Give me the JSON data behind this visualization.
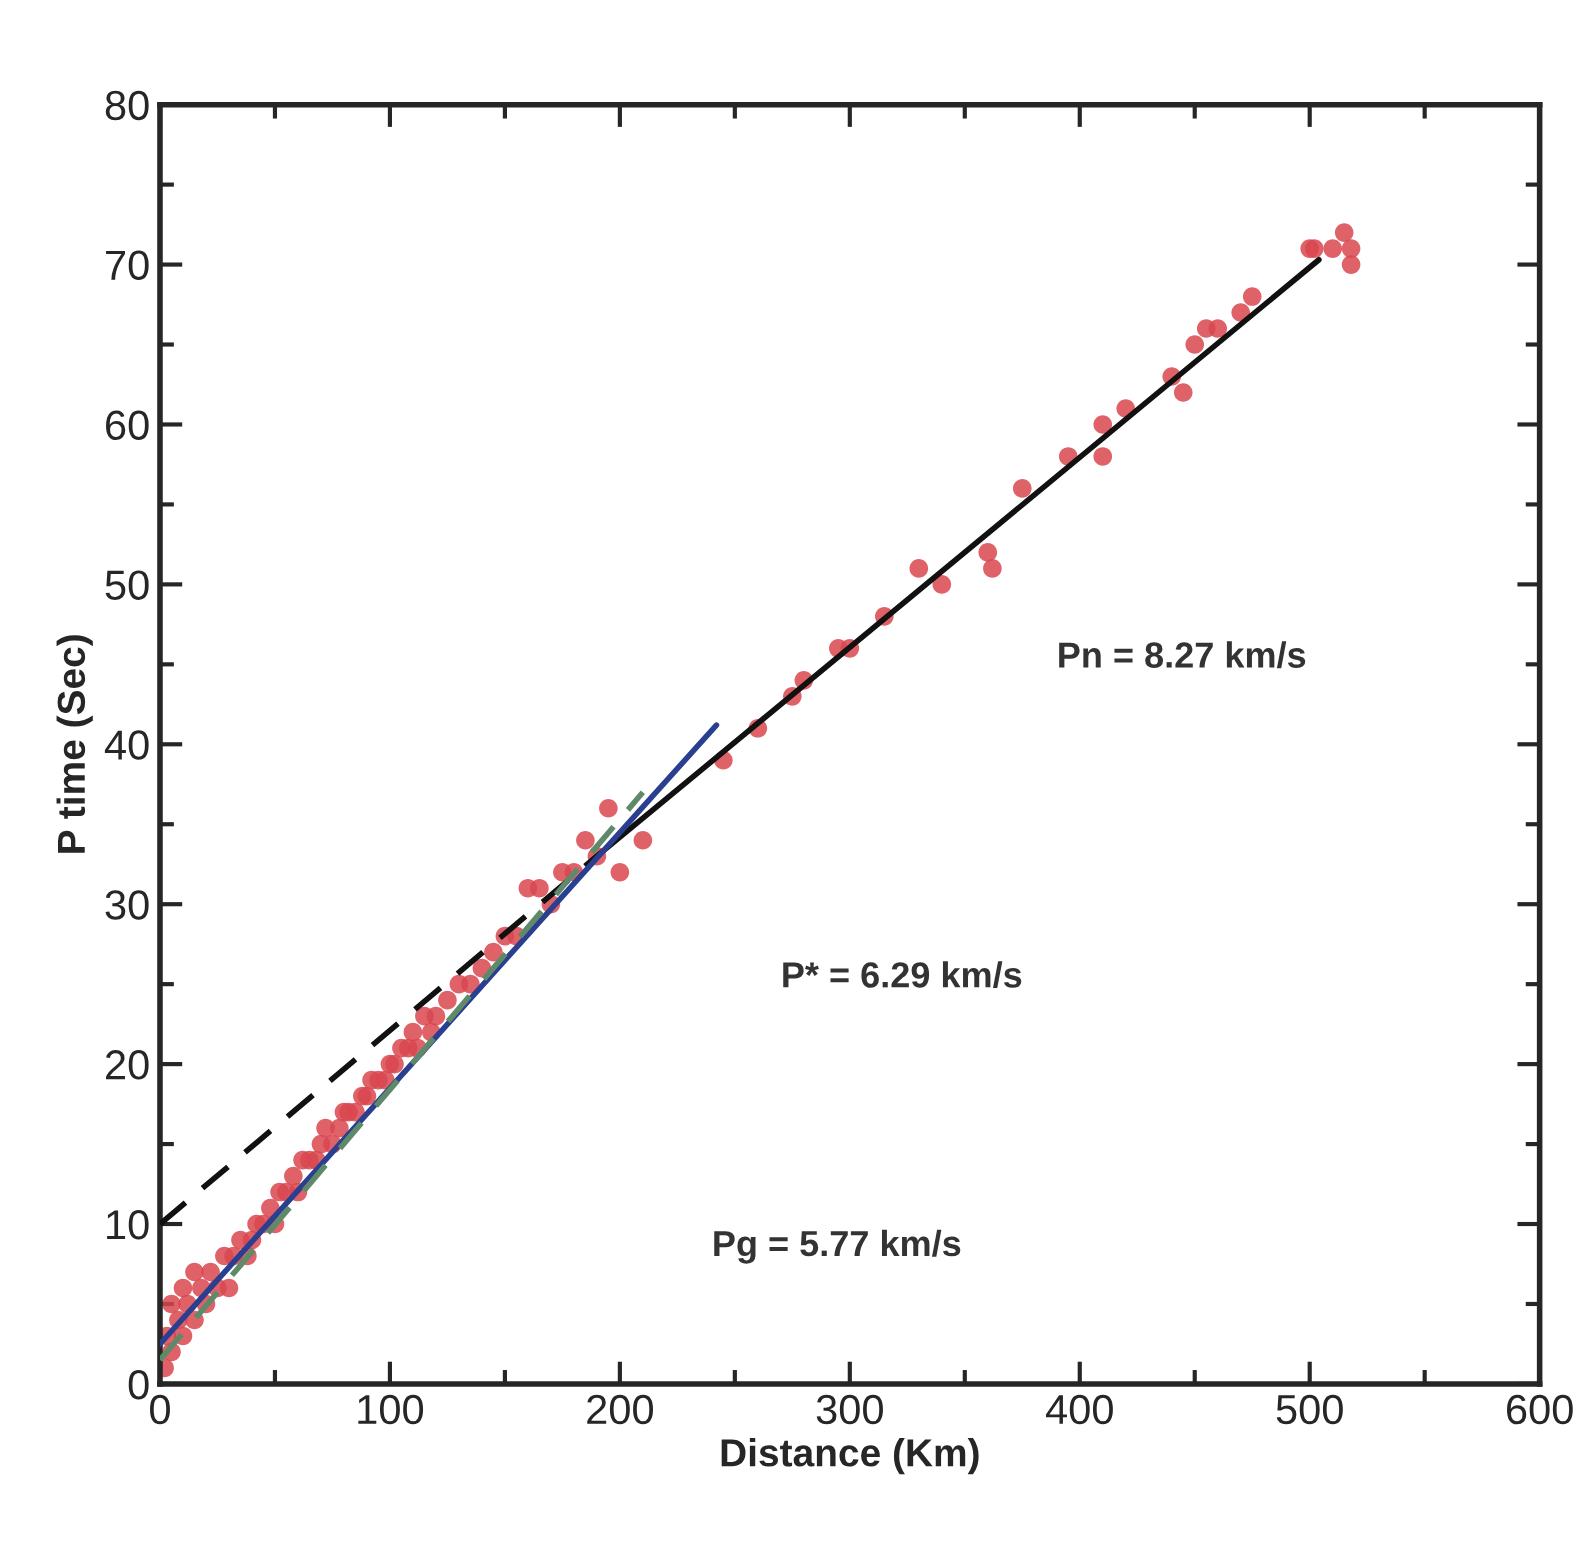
{
  "chart_data": {
    "type": "scatter",
    "xlabel": "Distance (Km)",
    "ylabel": "P time (Sec)",
    "xlim": [
      0,
      600
    ],
    "ylim": [
      0,
      80
    ],
    "xticks": [
      0,
      100,
      200,
      300,
      400,
      500,
      600
    ],
    "yticks": [
      0,
      10,
      20,
      30,
      40,
      50,
      60,
      70,
      80
    ],
    "grid": false,
    "series": [
      {
        "marker": "circle",
        "color": "#d9474f",
        "x": [
          2,
          3,
          5,
          5,
          8,
          10,
          10,
          12,
          15,
          15,
          18,
          20,
          22,
          25,
          28,
          30,
          32,
          35,
          38,
          40,
          42,
          45,
          48,
          50,
          52,
          55,
          58,
          60,
          62,
          65,
          68,
          70,
          72,
          75,
          78,
          80,
          82,
          85,
          88,
          90,
          92,
          95,
          98,
          100,
          102,
          105,
          108,
          110,
          112,
          115,
          118,
          120,
          125,
          130,
          135,
          140,
          145,
          150,
          155,
          160,
          165,
          170,
          175,
          180,
          185,
          190,
          195,
          200,
          210,
          245,
          260,
          275,
          280,
          295,
          300,
          315,
          330,
          340,
          360,
          362,
          375,
          395,
          410,
          410,
          420,
          440,
          445,
          450,
          455,
          460,
          470,
          475,
          500,
          502,
          510,
          515,
          518,
          518
        ],
        "values": [
          1,
          3,
          2,
          5,
          4,
          3,
          6,
          5,
          4,
          7,
          6,
          5,
          7,
          6,
          8,
          6,
          8,
          9,
          8,
          9,
          10,
          10,
          11,
          10,
          12,
          12,
          13,
          12,
          14,
          14,
          14,
          15,
          16,
          15,
          16,
          17,
          17,
          17,
          18,
          18,
          19,
          19,
          19,
          20,
          20,
          21,
          21,
          22,
          21,
          23,
          22,
          23,
          24,
          25,
          25,
          26,
          27,
          28,
          28,
          31,
          31,
          30,
          32,
          32,
          34,
          33,
          36,
          32,
          34,
          39,
          41,
          43,
          44,
          46,
          46,
          48,
          51,
          50,
          52,
          51,
          56,
          58,
          58,
          60,
          61,
          63,
          62,
          65,
          66,
          66,
          67,
          68,
          71,
          71,
          71,
          72,
          71,
          70
        ]
      },
      {
        "type": "line",
        "color": "#111111",
        "line_style": "solid",
        "x": [
          190,
          504
        ],
        "values": [
          33,
          70.3
        ]
      },
      {
        "type": "line",
        "color": "#111111",
        "line_style": "dashed",
        "x": [
          0,
          190
        ],
        "values": [
          10,
          33
        ]
      },
      {
        "type": "line",
        "color": "#2a3f8f",
        "line_style": "solid",
        "x": [
          0,
          242
        ],
        "values": [
          2.5,
          41.2
        ]
      },
      {
        "type": "line",
        "color": "#5f8a6a",
        "line_style": "dashed",
        "x": [
          0,
          210
        ],
        "values": [
          1.5,
          37
        ]
      }
    ],
    "annotations": [
      "Pn = 8.27 km/s",
      "P* = 6.29 km/s",
      "Pg = 5.77 km/s"
    ]
  }
}
